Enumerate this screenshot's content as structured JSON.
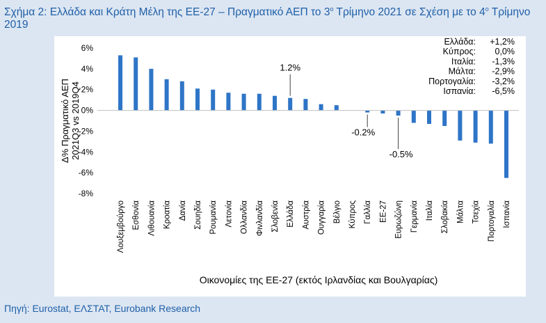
{
  "title": {
    "part1": "Σχήμα 2: Ελλάδα και Κράτη Μέλη της ΕΕ-27 – Πραγματικό ΑΕΠ το 3",
    "sup1": "ο",
    "part2": " Τρίμηνο 2021 σε Σχέση με το 4",
    "sup2": "ο",
    "part3": " Τρίμηνο 2019"
  },
  "source": "Πηγή: Eurostat, ΕΛΣΤΑΤ, Eurobank Research",
  "colors": {
    "bar": "#2e75c7",
    "title": "#1f5fa8",
    "panel_bg": "#ffffff",
    "page_bg": "#dce6f2"
  },
  "chart_data": {
    "type": "bar",
    "ylabel_line1": "Δ% Πραγματικό ΑΕΠ",
    "ylabel_line2": "2021Q3 vs 2019Q4",
    "xlabel": "Οικονομίες της ΕΕ-27 (εκτός Ιρλανδίας και Βουλγαρίας)",
    "ylim": [
      -8,
      6
    ],
    "yticks": [
      "6%",
      "4%",
      "2%",
      "0%",
      "-2%",
      "-4%",
      "-6%",
      "-8%"
    ],
    "categories": [
      "Λουξεμβούργο",
      "Εσθονία",
      "Λιθουανία",
      "Κροατία",
      "Δανία",
      "Σουηδία",
      "Ρουμανία",
      "Λετονία",
      "Ολλανδία",
      "Φινλανδία",
      "Σλοβενία",
      "Ελλάδα",
      "Αυστρία",
      "Ουγγαρία",
      "Βέλγιο",
      "Κύπρος",
      "Γαλλία",
      "ΕΕ-27",
      "Ευρωζώνη",
      "Γερμανία",
      "Ιταλία",
      "Σλοβακία",
      "Μάλτα",
      "Τσεχία",
      "Πορτογαλία",
      "Ισπανία"
    ],
    "values": [
      5.3,
      5.1,
      4.0,
      3.0,
      2.8,
      2.1,
      2.0,
      1.7,
      1.6,
      1.6,
      1.4,
      1.2,
      1.1,
      0.6,
      0.5,
      0.0,
      -0.2,
      -0.3,
      -0.5,
      -1.2,
      -1.3,
      -1.5,
      -2.9,
      -3.1,
      -3.2,
      -6.5
    ],
    "annotations": [
      {
        "text": "1.2%",
        "category": "Ελλάδα"
      },
      {
        "text": "-0.2%",
        "category": "Γαλλία"
      },
      {
        "text": "-0.5%",
        "category": "Ευρωζώνη"
      }
    ],
    "legend_box": [
      {
        "name": "Ελλάδα:",
        "value": "+1,2%"
      },
      {
        "name": "Κύπρος:",
        "value": "0,0%"
      },
      {
        "name": "Ιταλία:",
        "value": "-1,3%"
      },
      {
        "name": "Μάλτα:",
        "value": "-2,9%"
      },
      {
        "name": "Πορτογαλία:",
        "value": "-3,2%"
      },
      {
        "name": "Ισπανία:",
        "value": "-6,5%"
      }
    ],
    "legend_placement": "top-right",
    "grid": false
  }
}
